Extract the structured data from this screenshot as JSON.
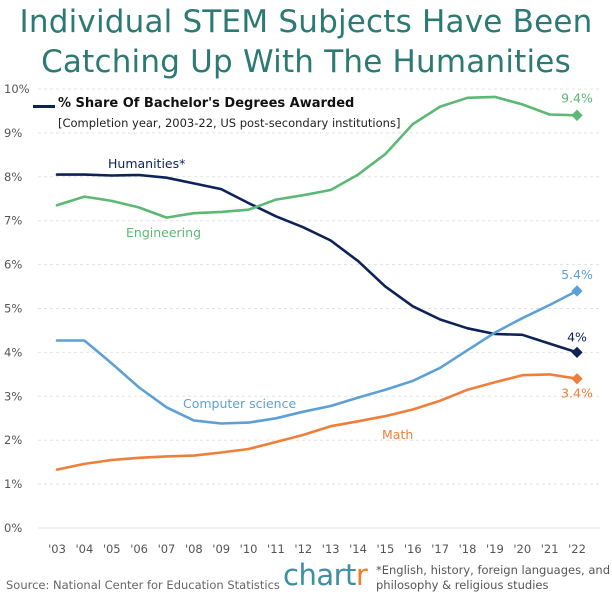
{
  "title": {
    "line1": "Individual STEM Subjects Have Been",
    "line2": "Catching Up With The Humanities"
  },
  "chart_data": {
    "type": "line",
    "title": "% Share Of Bachelor's Degrees Awarded",
    "subtitle": "[Completion year, 2003-22, US post-secondary institutions]",
    "x": [
      "'03",
      "'04",
      "'05",
      "'06",
      "'07",
      "'08",
      "'09",
      "'10",
      "'11",
      "'12",
      "'13",
      "'14",
      "'15",
      "'16",
      "'17",
      "'18",
      "'19",
      "'20",
      "'21",
      "'22"
    ],
    "ylim": [
      0,
      10
    ],
    "yticks": [
      "0%",
      "1%",
      "2%",
      "3%",
      "4%",
      "5%",
      "6%",
      "7%",
      "8%",
      "9%",
      "10%"
    ],
    "grid": true,
    "series": [
      {
        "name": "Humanities*",
        "color": "#0d2257",
        "values": [
          8.05,
          8.05,
          8.03,
          8.04,
          7.98,
          7.85,
          7.72,
          7.4,
          7.1,
          6.85,
          6.55,
          6.08,
          5.5,
          5.05,
          4.75,
          4.55,
          4.42,
          4.4,
          4.2,
          4.0
        ],
        "end_label": "4%"
      },
      {
        "name": "Engineering",
        "color": "#5cb874",
        "values": [
          7.35,
          7.55,
          7.45,
          7.3,
          7.07,
          7.17,
          7.2,
          7.25,
          7.48,
          7.58,
          7.7,
          8.05,
          8.52,
          9.2,
          9.6,
          9.8,
          9.82,
          9.65,
          9.42,
          9.4
        ],
        "end_label": "9.4%"
      },
      {
        "name": "Computer science",
        "color": "#5da0d6",
        "values": [
          4.27,
          4.27,
          3.75,
          3.2,
          2.75,
          2.45,
          2.38,
          2.4,
          2.5,
          2.65,
          2.78,
          2.97,
          3.15,
          3.35,
          3.65,
          4.05,
          4.45,
          4.78,
          5.08,
          5.4
        ],
        "end_label": "5.4%"
      },
      {
        "name": "Math",
        "color": "#ee7f3a",
        "values": [
          1.33,
          1.46,
          1.55,
          1.6,
          1.63,
          1.65,
          1.72,
          1.8,
          1.96,
          2.12,
          2.32,
          2.43,
          2.55,
          2.7,
          2.9,
          3.15,
          3.32,
          3.48,
          3.5,
          3.4
        ],
        "end_label": "3.4%"
      }
    ]
  },
  "source": "Source: National Center for Education Statistics",
  "brand": {
    "main": "chart",
    "accent": "r"
  },
  "footnote": "*English, history, foreign languages, and philosophy & religious studies"
}
